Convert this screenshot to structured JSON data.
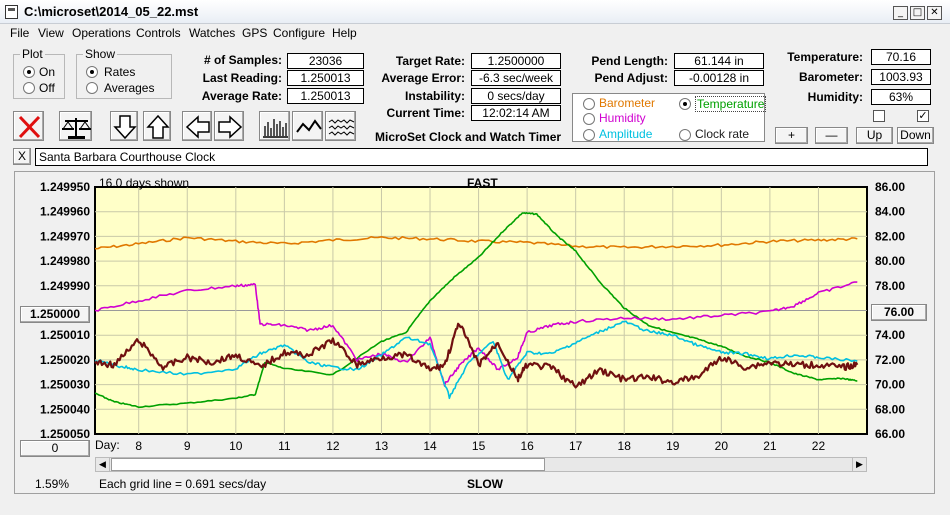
{
  "window": {
    "title": "C:\\microset\\2014_05_22.mst"
  },
  "menu": [
    "File",
    "View",
    "Operations",
    "Controls",
    "Watches",
    "GPS",
    "Configure",
    "Help"
  ],
  "plot_group": {
    "legend": "Plot",
    "options": [
      "On",
      "Off"
    ],
    "selected": "On"
  },
  "show_group": {
    "legend": "Show",
    "options": [
      "Rates",
      "Averages"
    ],
    "selected": "Rates"
  },
  "stats": {
    "samples_label": "# of Samples:",
    "samples": "23036",
    "last_label": "Last Reading:",
    "last": "1.250013",
    "avg_label": "Average Rate:",
    "avg": "1.250013",
    "target_label": "Target Rate:",
    "target": "1.2500000",
    "err_label": "Average Error:",
    "err": "-6.3 sec/week",
    "inst_label": "Instability:",
    "inst": "0 secs/day",
    "time_label": "Current Time:",
    "time": "12:02:14 AM",
    "pend_label": "Pend Length:",
    "pend": "61.144 in",
    "adj_label": "Pend Adjust:",
    "adj": "-0.00128 in",
    "temp_label": "Temperature:",
    "temp": "70.16",
    "baro_label": "Barometer:",
    "baro": "1003.93",
    "hum_label": "Humidity:",
    "hum": "63%"
  },
  "subtitle": "MicroSet Clock and Watch Timer",
  "overlay_options": [
    {
      "label": "Barometer",
      "color": "#e07800",
      "selected": false
    },
    {
      "label": "Temperature",
      "color": "#00a000",
      "selected": true
    },
    {
      "label": "Humidity",
      "color": "#d000d0",
      "selected": false
    },
    {
      "label": "Clock rate",
      "color": "#202020",
      "selected": false
    },
    {
      "label": "Amplitude",
      "color": "#00c0e0",
      "selected": false
    }
  ],
  "scale_buttons": [
    "+",
    "—",
    "Up",
    "Down"
  ],
  "clock_name": "Santa Barbara Courthouse Clock",
  "close_label": "X",
  "chart_data": {
    "type": "line",
    "title_top": "FAST",
    "title_bottom": "SLOW",
    "days_shown": "16.0 days shown",
    "grid_note": "Each grid line = 0.691 secs/day",
    "x_label": "Day:",
    "x_ticks": [
      "8",
      "9",
      "10",
      "11",
      "12",
      "13",
      "14",
      "15",
      "16",
      "17",
      "18",
      "19",
      "20",
      "21",
      "22"
    ],
    "xlim": [
      7.1,
      23.0
    ],
    "left_ticks": [
      "1.249950",
      "1.249960",
      "1.249970",
      "1.249980",
      "1.249990",
      "1.250000",
      "1.250010",
      "1.250020",
      "1.250030",
      "1.250040",
      "1.250050"
    ],
    "right_ticks": [
      "86.00",
      "84.00",
      "82.00",
      "80.00",
      "78.00",
      "76.00",
      "74.00",
      "72.00",
      "70.00",
      "68.00",
      "66.00"
    ],
    "left_center_value": "1.250000",
    "right_center_value": "76.00",
    "bottom_left_value": "0",
    "percent": "1.59%",
    "series": [
      {
        "name": "Barometer",
        "color": "#e07800",
        "x": [
          7.1,
          8,
          9,
          10,
          11,
          12,
          13,
          14,
          15,
          16,
          17,
          18,
          19,
          20,
          21,
          22,
          22.8
        ],
        "y": [
          81.0,
          81.4,
          81.9,
          81.6,
          81.4,
          81.7,
          81.9,
          81.8,
          81.6,
          81.5,
          81.2,
          81.1,
          81.2,
          81.3,
          81.6,
          81.7,
          81.8
        ]
      },
      {
        "name": "Temperature",
        "color": "#00a000",
        "x": [
          7.1,
          7.5,
          8,
          9,
          10,
          10.4,
          10.6,
          11,
          12,
          13,
          13.5,
          14,
          14.5,
          15,
          15.5,
          15.9,
          16.2,
          16.6,
          17,
          17.5,
          18,
          18.5,
          19,
          19.5,
          20,
          20.5,
          21,
          21.5,
          22,
          22.5,
          22.8
        ],
        "y": [
          69.3,
          68.6,
          68.2,
          68.5,
          68.9,
          69.2,
          71.8,
          71.3,
          70.8,
          73.5,
          74.2,
          76.8,
          78.7,
          80.3,
          82.4,
          83.9,
          83.8,
          82.1,
          80.8,
          78.3,
          76.2,
          74.8,
          74.2,
          73.7,
          73.1,
          72.3,
          71.8,
          70.9,
          70.4,
          70.5,
          70.3
        ]
      },
      {
        "name": "Humidity",
        "color": "#d000d0",
        "x": [
          7.1,
          8,
          9,
          10,
          10.4,
          10.5,
          11,
          11.5,
          12,
          12.5,
          13,
          13.5,
          14,
          14.3,
          14.6,
          15,
          15.4,
          15.8,
          16,
          16.5,
          17,
          18,
          19,
          20,
          21,
          21.5,
          22,
          22.8
        ],
        "y": [
          76.0,
          76.8,
          77.6,
          78.0,
          78.1,
          74.9,
          74.8,
          74.4,
          74.8,
          72.0,
          72.5,
          71.8,
          73.8,
          70.0,
          71.5,
          73.0,
          71.2,
          72.2,
          74.2,
          74.8,
          75.1,
          75.4,
          75.3,
          75.6,
          75.9,
          76.4,
          77.4,
          78.3
        ]
      },
      {
        "name": "Amplitude",
        "color": "#00c0e0",
        "x": [
          7.1,
          7.6,
          8,
          9,
          10,
          10.5,
          11,
          11.5,
          12,
          12.5,
          13,
          13.5,
          14,
          14.4,
          14.8,
          15.3,
          15.6,
          16,
          16.5,
          17,
          17.5,
          18,
          18.5,
          19,
          19.5,
          20,
          20.5,
          21,
          21.5,
          22,
          22.8
        ],
        "y": [
          72.0,
          71.5,
          71.2,
          70.8,
          71.3,
          72.5,
          73.2,
          71.8,
          71.4,
          71.2,
          72.4,
          73.8,
          73.3,
          69.0,
          71.8,
          73.5,
          70.4,
          72.6,
          72.5,
          73.4,
          74.3,
          75.1,
          74.3,
          74.0,
          73.2,
          72.6,
          72.5,
          72.1,
          72.4,
          72.2,
          71.9
        ]
      },
      {
        "name": "Clock rate",
        "color": "#701010",
        "x": [
          7.1,
          7.5,
          8,
          8.5,
          9,
          9.5,
          10,
          10.5,
          11,
          11.5,
          12,
          12.5,
          13,
          13.5,
          14,
          14.3,
          14.6,
          15,
          15.4,
          15.8,
          16,
          16.5,
          17,
          17.5,
          18,
          18.5,
          19,
          19.5,
          20,
          20.5,
          21,
          21.5,
          22,
          22.5,
          22.8
        ],
        "y": [
          1.250021,
          1.250022,
          1.250012,
          1.250023,
          1.250019,
          1.250021,
          1.250018,
          1.250023,
          1.250017,
          1.250018,
          1.250012,
          1.250022,
          1.250019,
          1.250018,
          1.250024,
          1.250022,
          1.250005,
          1.250022,
          1.250013,
          1.250028,
          1.250022,
          1.250023,
          1.250031,
          1.250024,
          1.250028,
          1.250027,
          1.250029,
          1.250027,
          1.250019,
          1.250023,
          1.250021,
          1.250022,
          1.250022,
          1.250023,
          1.250022
        ]
      }
    ]
  }
}
